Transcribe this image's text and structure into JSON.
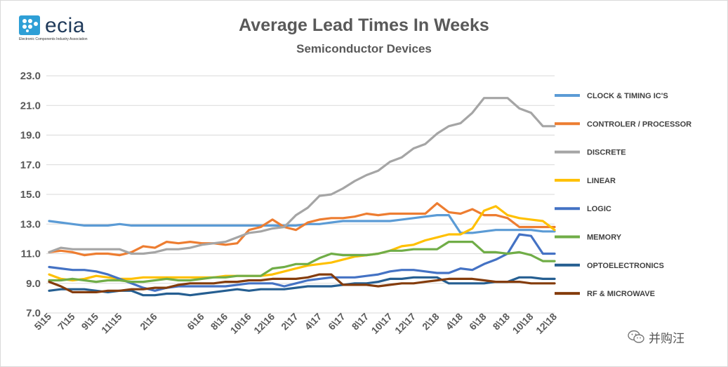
{
  "header": {
    "logo_text": "ecia",
    "logo_subtext": "Electronic Components Industry Association",
    "title": "Average Lead Times In Weeks",
    "subtitle": "Semiconductor Devices"
  },
  "watermark": {
    "text": "并购汪",
    "icon": "wechat-icon"
  },
  "chart_data": {
    "type": "line",
    "title": "Average Lead Times In Weeks",
    "subtitle": "Semiconductor Devices",
    "xlabel": "",
    "ylabel": "",
    "ylim": [
      7.0,
      23.0
    ],
    "yticks": [
      "7.0",
      "9.0",
      "11.0",
      "13.0",
      "15.0",
      "17.0",
      "19.0",
      "21.0",
      "23.0"
    ],
    "grid": true,
    "legend_position": "right",
    "x": [
      "5\\15",
      "6\\15",
      "7\\15",
      "8\\15",
      "9\\15",
      "10\\15",
      "11\\15",
      "12\\15",
      "1\\16",
      "2\\16",
      "3\\16",
      "4\\16",
      "5\\16",
      "6\\16",
      "7\\16",
      "8\\16",
      "9\\16",
      "10\\16",
      "11\\16",
      "12\\16",
      "1\\17",
      "2\\17",
      "3\\17",
      "4\\17",
      "5\\17",
      "6\\17",
      "7\\17",
      "8\\17",
      "9\\17",
      "10\\17",
      "11\\17",
      "12\\17",
      "1\\18",
      "2\\18",
      "3\\18",
      "4\\18",
      "5\\18",
      "6\\18",
      "7\\18",
      "8\\18",
      "9\\18",
      "10\\18",
      "11\\18",
      "12\\18"
    ],
    "xtick_labels": [
      "5\\15",
      "7\\15",
      "9\\15",
      "11\\15",
      "2\\16",
      "6\\16",
      "8\\16",
      "10\\16",
      "12\\16",
      "2\\17",
      "4\\17",
      "6\\17",
      "8\\17",
      "10\\17",
      "12\\17",
      "2\\18",
      "4\\18",
      "6\\18",
      "8\\18",
      "10\\18",
      "12\\18"
    ],
    "series": [
      {
        "name": "CLOCK & TIMING IC'S",
        "color": "#5b9bd5",
        "values": [
          13.2,
          13.1,
          13.0,
          12.9,
          12.9,
          12.9,
          13.0,
          12.9,
          12.9,
          12.9,
          12.9,
          12.9,
          12.9,
          12.9,
          12.9,
          12.9,
          12.9,
          12.9,
          12.9,
          12.9,
          12.9,
          12.9,
          13.0,
          13.0,
          13.1,
          13.2,
          13.2,
          13.2,
          13.2,
          13.2,
          13.3,
          13.4,
          13.5,
          13.6,
          13.6,
          12.4,
          12.4,
          12.5,
          12.6,
          12.6,
          12.6,
          12.6,
          12.5,
          12.5
        ]
      },
      {
        "name": "CONTROLER / PROCESSOR",
        "color": "#ed7d31",
        "values": [
          11.1,
          11.2,
          11.1,
          10.9,
          11.0,
          11.0,
          10.9,
          11.1,
          11.5,
          11.4,
          11.8,
          11.7,
          11.8,
          11.7,
          11.7,
          11.6,
          11.7,
          12.6,
          12.8,
          13.3,
          12.8,
          12.6,
          13.1,
          13.3,
          13.4,
          13.4,
          13.5,
          13.7,
          13.6,
          13.7,
          13.7,
          13.7,
          13.7,
          14.4,
          13.8,
          13.7,
          14.0,
          13.6,
          13.6,
          13.4,
          12.8,
          12.8,
          12.8,
          12.8
        ]
      },
      {
        "name": "DISCRETE",
        "color": "#a5a5a5",
        "values": [
          11.1,
          11.4,
          11.3,
          11.3,
          11.3,
          11.3,
          11.3,
          11.0,
          11.0,
          11.1,
          11.3,
          11.3,
          11.4,
          11.6,
          11.7,
          11.8,
          12.1,
          12.4,
          12.5,
          12.7,
          12.8,
          13.6,
          14.1,
          14.9,
          15.0,
          15.4,
          15.9,
          16.3,
          16.6,
          17.2,
          17.5,
          18.1,
          18.4,
          19.1,
          19.6,
          19.8,
          20.5,
          21.5,
          21.5,
          21.5,
          20.8,
          20.5,
          19.6,
          19.6
        ]
      },
      {
        "name": "LINEAR",
        "color": "#ffc000",
        "values": [
          9.6,
          9.3,
          9.2,
          9.3,
          9.5,
          9.4,
          9.3,
          9.3,
          9.4,
          9.4,
          9.4,
          9.4,
          9.4,
          9.4,
          9.4,
          9.5,
          9.5,
          9.5,
          9.5,
          9.6,
          9.8,
          10.0,
          10.2,
          10.3,
          10.4,
          10.6,
          10.8,
          10.9,
          11.0,
          11.2,
          11.5,
          11.6,
          11.9,
          12.1,
          12.3,
          12.3,
          12.7,
          13.9,
          14.2,
          13.6,
          13.4,
          13.3,
          13.2,
          12.6
        ]
      },
      {
        "name": "LOGIC",
        "color": "#4472c4",
        "values": [
          10.1,
          10.0,
          9.9,
          9.9,
          9.8,
          9.6,
          9.3,
          9.0,
          8.7,
          8.5,
          8.7,
          8.8,
          8.8,
          8.8,
          8.8,
          8.8,
          8.9,
          9.0,
          9.0,
          9.0,
          8.8,
          9.0,
          9.2,
          9.3,
          9.4,
          9.4,
          9.4,
          9.5,
          9.6,
          9.8,
          9.9,
          9.9,
          9.8,
          9.7,
          9.7,
          10.0,
          9.9,
          10.3,
          10.6,
          11.0,
          12.3,
          12.2,
          11.0,
          11.0
        ]
      },
      {
        "name": "MEMORY",
        "color": "#70ad47",
        "values": [
          9.2,
          9.2,
          9.3,
          9.2,
          9.1,
          9.2,
          9.2,
          9.1,
          9.1,
          9.2,
          9.3,
          9.2,
          9.2,
          9.3,
          9.4,
          9.4,
          9.5,
          9.5,
          9.5,
          10.0,
          10.1,
          10.3,
          10.3,
          10.7,
          11.0,
          10.9,
          10.9,
          10.9,
          11.0,
          11.2,
          11.2,
          11.3,
          11.3,
          11.3,
          11.8,
          11.8,
          11.8,
          11.1,
          11.1,
          11.0,
          11.1,
          10.9,
          10.5,
          10.5
        ]
      },
      {
        "name": "OPTOELECTRONICS",
        "color": "#255e91",
        "values": [
          8.5,
          8.6,
          8.6,
          8.6,
          8.5,
          8.4,
          8.5,
          8.5,
          8.2,
          8.2,
          8.3,
          8.3,
          8.2,
          8.3,
          8.4,
          8.5,
          8.6,
          8.5,
          8.6,
          8.6,
          8.6,
          8.7,
          8.8,
          8.8,
          8.8,
          8.9,
          9.0,
          9.0,
          9.1,
          9.3,
          9.3,
          9.4,
          9.4,
          9.4,
          9.0,
          9.0,
          9.0,
          9.0,
          9.1,
          9.1,
          9.4,
          9.4,
          9.3,
          9.3
        ]
      },
      {
        "name": "RF & MICROWAVE",
        "color": "#843c0c",
        "values": [
          9.1,
          8.8,
          8.4,
          8.4,
          8.4,
          8.5,
          8.5,
          8.6,
          8.6,
          8.7,
          8.7,
          8.9,
          9.0,
          9.0,
          9.0,
          9.1,
          9.1,
          9.2,
          9.2,
          9.3,
          9.3,
          9.3,
          9.4,
          9.6,
          9.6,
          8.9,
          8.9,
          8.9,
          8.8,
          8.9,
          9.0,
          9.0,
          9.1,
          9.2,
          9.3,
          9.3,
          9.3,
          9.2,
          9.1,
          9.1,
          9.1,
          9.0,
          9.0,
          9.0
        ]
      }
    ]
  }
}
